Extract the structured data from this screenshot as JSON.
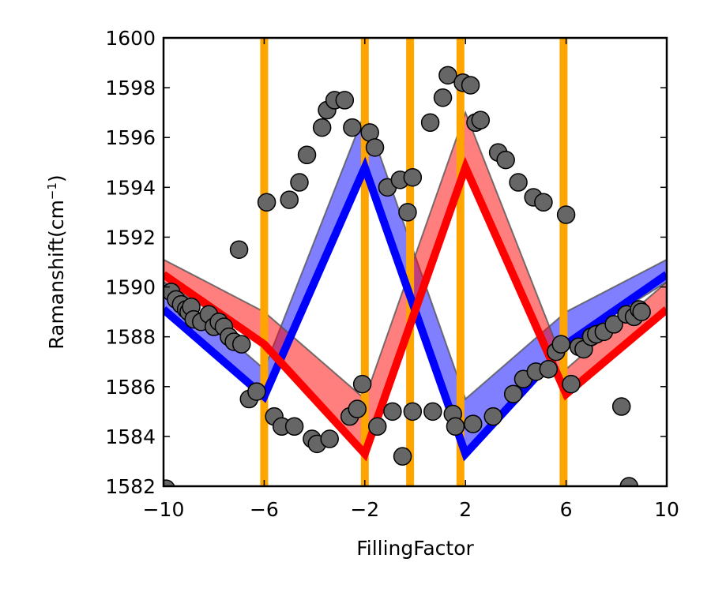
{
  "chart_data": {
    "type": "scatter",
    "xlabel": "FillingFactor",
    "ylabel": "Ramanshift(cm",
    "ylabel_sup": "−1",
    "ylabel_suffix": ")",
    "xlim": [
      -10,
      10
    ],
    "ylim": [
      1582,
      1600
    ],
    "xticks": [
      -10,
      -6,
      -2,
      2,
      6,
      10
    ],
    "xtick_labels": [
      "−10",
      "−6",
      "−2",
      "2",
      "6",
      "10"
    ],
    "yticks": [
      1582,
      1584,
      1586,
      1588,
      1590,
      1592,
      1594,
      1596,
      1598,
      1600
    ],
    "ytick_labels": [
      "1582",
      "1584",
      "1586",
      "1588",
      "1590",
      "1592",
      "1594",
      "1596",
      "1598",
      "1600"
    ],
    "vertical_lines": {
      "x": [
        -6,
        -2,
        -0.2,
        1.8,
        5.9
      ],
      "color": "#FFA500"
    },
    "bands": [
      {
        "color": "#0000FF",
        "opacity": 0.5,
        "upper": {
          "x": [
            -10,
            -6,
            -2,
            2,
            6,
            10
          ],
          "y": [
            1590.2,
            1586.7,
            1597.0,
            1585.5,
            1589.0,
            1591.1
          ]
        },
        "lower": {
          "x": [
            -10,
            -6,
            -2,
            2,
            6,
            10
          ],
          "y": [
            1589.0,
            1585.6,
            1594.8,
            1583.3,
            1587.7,
            1590.2
          ]
        }
      },
      {
        "color": "#FF0000",
        "opacity": 0.5,
        "upper": {
          "x": [
            -10,
            -6,
            -2,
            2,
            6,
            10
          ],
          "y": [
            1591.1,
            1589.0,
            1585.5,
            1597.0,
            1586.7,
            1590.2
          ]
        },
        "lower": {
          "x": [
            -10,
            -6,
            -2,
            2,
            6,
            10
          ],
          "y": [
            1590.2,
            1587.7,
            1583.3,
            1594.8,
            1585.6,
            1589.0
          ]
        }
      }
    ],
    "series": [
      {
        "color": "#0000FF",
        "x": [
          -10,
          -6,
          -2,
          2,
          6,
          10
        ],
        "y": [
          1589.1,
          1585.6,
          1594.8,
          1583.3,
          1587.7,
          1590.5
        ]
      },
      {
        "color": "#FF0000",
        "x": [
          -10,
          -6,
          -2,
          2,
          6,
          10
        ],
        "y": [
          1590.5,
          1587.7,
          1583.3,
          1594.8,
          1585.7,
          1589.1
        ]
      }
    ],
    "points": {
      "color": "#666666",
      "x": [
        -9.9,
        -9.7,
        -9.5,
        -9.3,
        -9.1,
        -9.0,
        -8.9,
        -8.8,
        -8.5,
        -8.2,
        -8.0,
        -7.8,
        -7.6,
        -7.4,
        -7.2,
        -7.0,
        -6.9,
        -6.6,
        -6.3,
        -5.9,
        -5.6,
        -5.3,
        -5.0,
        -4.8,
        -4.6,
        -4.3,
        -4.1,
        -3.9,
        -3.7,
        -3.5,
        -3.4,
        -3.2,
        -2.8,
        -2.6,
        -2.5,
        -2.3,
        -2.1,
        -1.8,
        -1.6,
        -1.5,
        -1.1,
        -0.9,
        -0.6,
        -0.5,
        -0.3,
        -0.1,
        -0.1,
        0.6,
        0.7,
        1.1,
        1.3,
        1.5,
        1.6,
        1.9,
        2.2,
        2.3,
        2.4,
        2.6,
        3.1,
        3.3,
        3.6,
        3.9,
        4.1,
        4.3,
        4.7,
        4.8,
        5.1,
        5.3,
        5.6,
        5.8,
        6.0,
        6.2,
        6.5,
        6.7,
        7.0,
        7.2,
        7.5,
        7.9,
        8.2,
        8.4,
        8.5,
        8.7,
        8.9,
        9.0
      ],
      "y": [
        1581.9,
        1589.8,
        1589.5,
        1589.3,
        1589.1,
        1589.0,
        1589.2,
        1588.7,
        1588.6,
        1588.9,
        1588.4,
        1588.6,
        1588.4,
        1588.0,
        1587.8,
        1591.5,
        1587.7,
        1585.5,
        1585.8,
        1593.4,
        1584.8,
        1584.4,
        1593.5,
        1584.4,
        1594.2,
        1595.3,
        1583.9,
        1583.7,
        1596.4,
        1597.1,
        1583.9,
        1597.5,
        1597.5,
        1584.8,
        1596.4,
        1585.1,
        1586.1,
        1596.2,
        1595.6,
        1584.4,
        1594.0,
        1585.0,
        1594.3,
        1583.2,
        1593.0,
        1585.0,
        1594.4,
        1596.6,
        1585.0,
        1597.6,
        1598.5,
        1584.9,
        1584.4,
        1598.2,
        1598.1,
        1584.5,
        1596.6,
        1596.7,
        1584.8,
        1595.4,
        1595.1,
        1585.7,
        1594.2,
        1586.3,
        1593.6,
        1586.6,
        1593.4,
        1586.7,
        1587.4,
        1587.7,
        1592.9,
        1586.1,
        1587.6,
        1587.5,
        1588.0,
        1588.1,
        1588.2,
        1588.5,
        1585.2,
        1588.9,
        1582.0,
        1588.8,
        1589.1,
        1589.0
      ]
    }
  }
}
